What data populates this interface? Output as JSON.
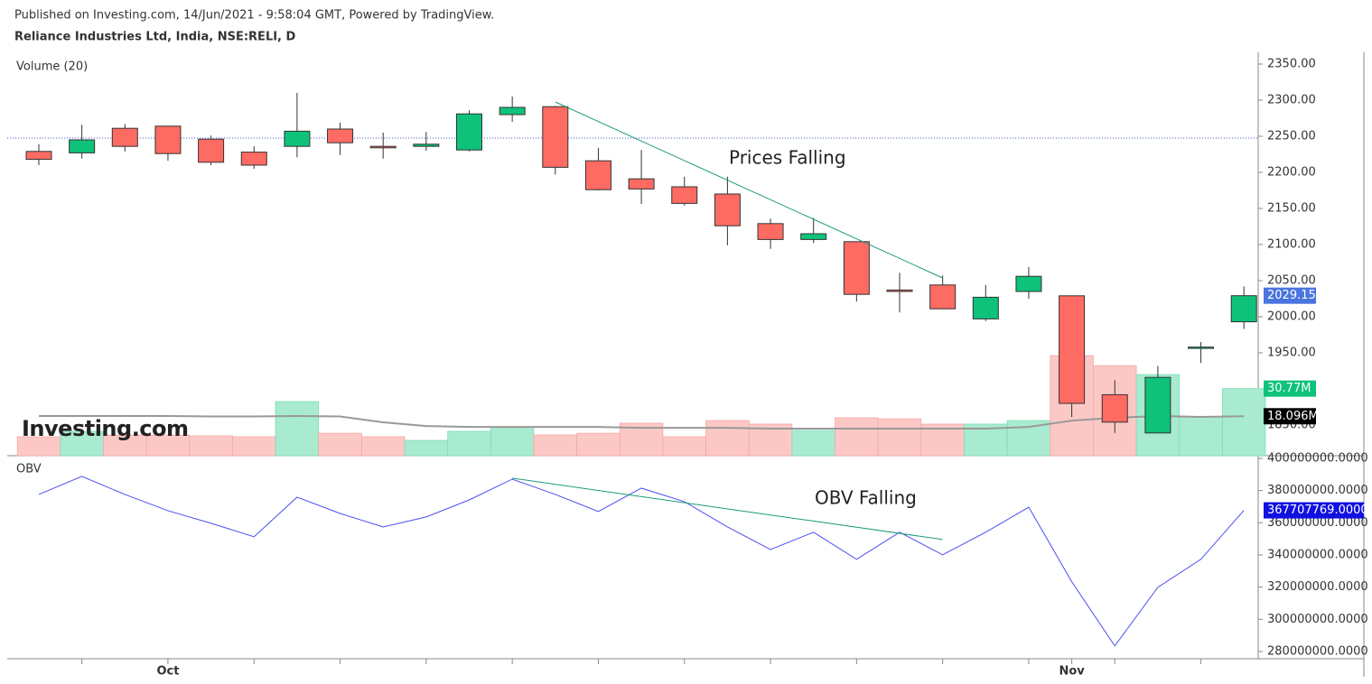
{
  "header": {
    "published": "Published on Investing.com, 14/Jun/2021 - 9:58:04 GMT, Powered by TradingView.",
    "instrument": "Reliance Industries Ltd, India, NSE:RELI, D"
  },
  "logo": "Investing.com",
  "chart_data": [
    {
      "type": "candlestick",
      "categories": [
        null,
        null,
        null,
        "Oct",
        null,
        null,
        null,
        null,
        null,
        null,
        null,
        null,
        null,
        null,
        null,
        null,
        null,
        null,
        null,
        null,
        null,
        null,
        null,
        null,
        "Nov",
        null,
        null,
        null,
        null
      ],
      "open": [
        2229,
        2227,
        2261,
        2264,
        2246,
        2228,
        2236,
        2260,
        2236,
        2236,
        2231,
        2280,
        2291,
        2216,
        2191,
        2180,
        2170,
        2129,
        2107,
        2104,
        2037,
        2044,
        1997,
        2035,
        2029,
        1892,
        1839,
        1957,
        1993
      ],
      "high": [
        2239,
        2266,
        2267,
        2264,
        2251,
        2236,
        2310,
        2269,
        2255,
        2256,
        2286,
        2305,
        2292,
        2234,
        2231,
        2194,
        2194,
        2136,
        2137,
        2104,
        2061,
        2057,
        2044,
        2069,
        2029,
        1912,
        1932,
        1965,
        2042
      ],
      "low": [
        2210,
        2219,
        2229,
        2216,
        2210,
        2205,
        2221,
        2224,
        2219,
        2230,
        2229,
        2270,
        2197,
        2175,
        2156,
        2154,
        2099,
        2094,
        2102,
        2021,
        2006,
        2011,
        1994,
        2025,
        1861,
        1839,
        1839,
        1936,
        1983
      ],
      "close": [
        2218,
        2245,
        2236,
        2226,
        2214,
        2210,
        2257,
        2241,
        2234,
        2239,
        2281,
        2290,
        2207,
        2176,
        2177,
        2157,
        2126,
        2107,
        2115,
        2031,
        2035,
        2011,
        2027,
        2056,
        1880,
        1854,
        1916,
        1958,
        2029.15
      ],
      "up_color": "#0ec27a",
      "down_color": "#fe6b63",
      "ylim": [
        1807.5,
        2366.25
      ],
      "yticks": [
        {
          "value": 1850,
          "label": "1850.00"
        },
        {
          "value": 1900,
          "label": "1900.00"
        },
        {
          "value": 1950,
          "label": "1950.00"
        },
        {
          "value": 2000,
          "label": "2000.00"
        },
        {
          "value": 2050,
          "label": "2050.00"
        },
        {
          "value": 2100,
          "label": "2100.00"
        },
        {
          "value": 2150,
          "label": "2150.00"
        },
        {
          "value": 2200,
          "label": "2200.00"
        },
        {
          "value": 2250,
          "label": "2250.00"
        },
        {
          "value": 2300,
          "label": "2300.00"
        },
        {
          "value": 2350,
          "label": "2350.00"
        }
      ],
      "hline": {
        "value": 2247.5,
        "color": "#3b56d8"
      },
      "trend_line": {
        "from": [
          12,
          2297.5
        ],
        "to": [
          21,
          2053.75
        ],
        "color": "#1a9a7a"
      },
      "annotation": "Prices Falling",
      "volume": {
        "label": "Volume (20)",
        "up_color": "#a8ebd0",
        "down_color": "#fcc8c6",
        "values": [
          8700000,
          11200000,
          9500000,
          9500000,
          9100000,
          8700000,
          24800000,
          10300000,
          8700000,
          7000000,
          11200000,
          13200000,
          9500000,
          10300000,
          14900000,
          8700000,
          16100000,
          14500000,
          11600000,
          17400000,
          16900000,
          14500000,
          14500000,
          16100000,
          45900000,
          41300000,
          37200000,
          17800000,
          30770000
        ],
        "value_labels": [
          null,
          null,
          null,
          null,
          null,
          null,
          null,
          null,
          null,
          null,
          null,
          null,
          null,
          null,
          null,
          null,
          null,
          null,
          null,
          null,
          null,
          null,
          null,
          null,
          null,
          null,
          null,
          null,
          "30.77M"
        ],
        "ylim": [
          0,
          185000000
        ],
        "ma": {
          "color": "#999999",
          "values": [
            18200000,
            18200000,
            18200000,
            18200000,
            18000000,
            18000000,
            18200000,
            18000000,
            15300000,
            13600000,
            13200000,
            13200000,
            13200000,
            13200000,
            12800000,
            12800000,
            12800000,
            12400000,
            12400000,
            12400000,
            12400000,
            12400000,
            12400000,
            13200000,
            16100000,
            17400000,
            18200000,
            17800000,
            18096000
          ],
          "value_labels": [
            null,
            null,
            null,
            null,
            null,
            null,
            null,
            null,
            null,
            null,
            null,
            null,
            null,
            null,
            null,
            null,
            null,
            null,
            null,
            null,
            null,
            null,
            null,
            null,
            null,
            null,
            null,
            null,
            "18.096M"
          ]
        }
      }
    },
    {
      "type": "line",
      "title": "OBV",
      "color": "#4a4ef0",
      "values": [
        377600000,
        388800000,
        377600000,
        367500000,
        359700000,
        351300000,
        375900000,
        365800000,
        357400000,
        363600000,
        374200000,
        387100000,
        377600000,
        367000000,
        381500000,
        373100000,
        357400000,
        343400000,
        354100000,
        337300000,
        354100000,
        340100000,
        354100000,
        369700000,
        323300000,
        283500000,
        319900000,
        337300000,
        367707769
      ],
      "value_labels": [
        null,
        null,
        null,
        null,
        null,
        null,
        null,
        null,
        null,
        null,
        null,
        null,
        null,
        null,
        null,
        null,
        null,
        null,
        null,
        null,
        null,
        null,
        null,
        null,
        null,
        null,
        null,
        null,
        "367707769.0000"
      ],
      "ylim": [
        275500000,
        400550000
      ],
      "yticks": [
        {
          "value": 280000000,
          "label": "280000000.0000"
        },
        {
          "value": 300000000,
          "label": "300000000.0000"
        },
        {
          "value": 320000000,
          "label": "320000000.0000"
        },
        {
          "value": 340000000,
          "label": "340000000.0000"
        },
        {
          "value": 360000000,
          "label": "360000000.0000"
        },
        {
          "value": 380000000,
          "label": "380000000.0000"
        },
        {
          "value": 400000000,
          "label": "400000000.0000"
        }
      ],
      "trend_line": {
        "from": [
          11,
          387700000
        ],
        "to": [
          21,
          349600000
        ],
        "color": "#1a9a7a"
      },
      "annotation": "OBV Falling"
    }
  ]
}
